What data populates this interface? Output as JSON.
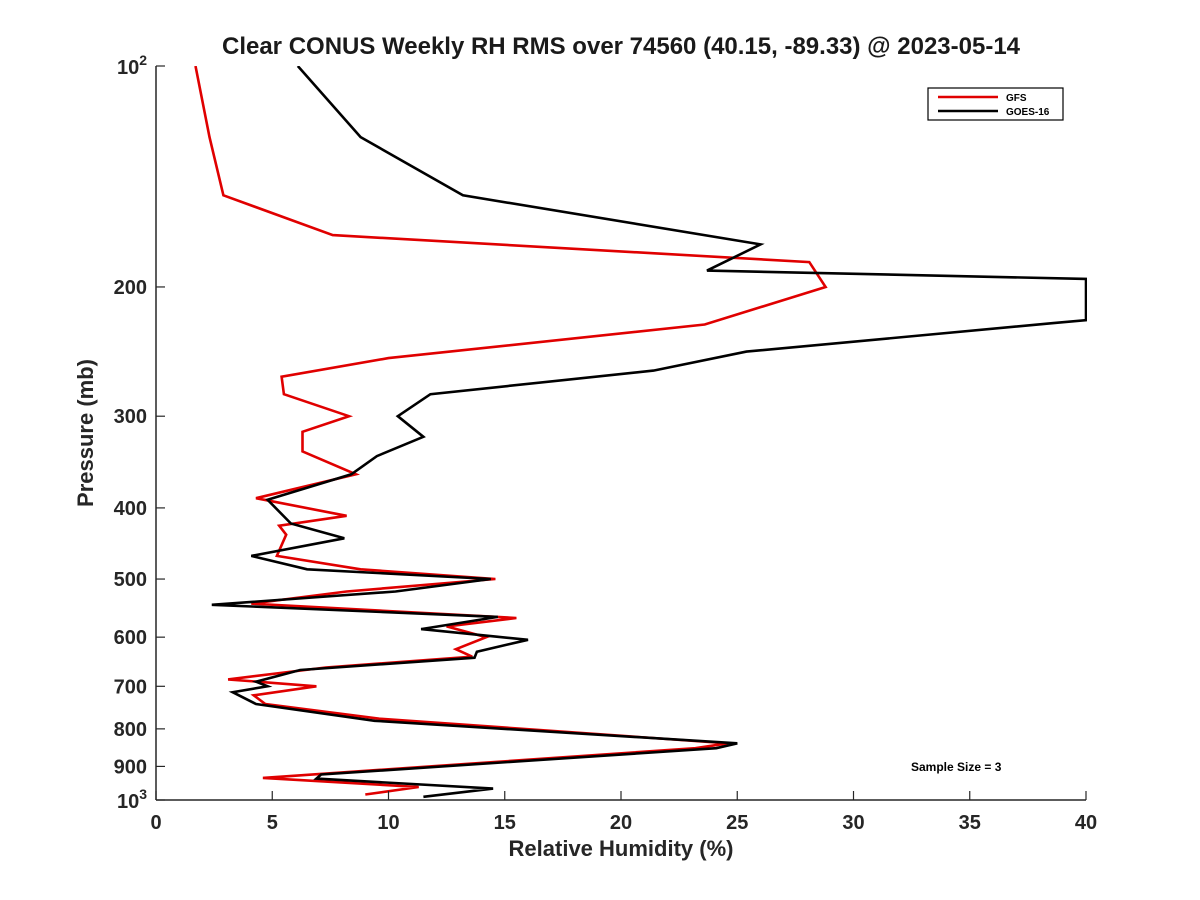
{
  "chart_data": {
    "type": "line",
    "title": "Clear CONUS Weekly RH RMS over 74560 (40.15, -89.33) @ 2023-05-14",
    "xlabel": "Relative Humidity (%)",
    "ylabel": "Pressure (mb)",
    "xlim": [
      0,
      40
    ],
    "ylim": [
      100,
      1000
    ],
    "y_scale": "log",
    "y_reversed": true,
    "x_ticks": [
      0,
      5,
      10,
      15,
      20,
      25,
      30,
      35,
      40
    ],
    "x_tick_labels": [
      "0",
      "5",
      "10",
      "15",
      "20",
      "25",
      "30",
      "35",
      "40"
    ],
    "y_ticks": [
      200,
      300,
      400,
      500,
      600,
      700,
      800,
      900
    ],
    "y_tick_labels": [
      "200",
      "300",
      "400",
      "500",
      "600",
      "700",
      "800",
      "900"
    ],
    "y_top_label": {
      "base": "10",
      "exp": "2"
    },
    "y_bottom_label": {
      "base": "10",
      "exp": "3"
    },
    "grid": false,
    "legend_position": "top-right",
    "annotation": "Sample Size = 3",
    "series": [
      {
        "name": "GFS",
        "color": "#e00000",
        "points": [
          [
            1.7,
            100
          ],
          [
            2.3,
            125
          ],
          [
            2.9,
            150
          ],
          [
            7.6,
            170
          ],
          [
            28.1,
            185
          ],
          [
            28.8,
            200
          ],
          [
            23.6,
            225
          ],
          [
            10.0,
            250
          ],
          [
            5.4,
            265
          ],
          [
            5.5,
            280
          ],
          [
            8.3,
            300
          ],
          [
            6.3,
            315
          ],
          [
            6.3,
            335
          ],
          [
            8.6,
            360
          ],
          [
            4.3,
            388
          ],
          [
            8.2,
            410
          ],
          [
            5.3,
            423
          ],
          [
            5.6,
            435
          ],
          [
            5.2,
            465
          ],
          [
            8.8,
            485
          ],
          [
            14.6,
            500
          ],
          [
            8.2,
            520
          ],
          [
            4.1,
            540
          ],
          [
            15.5,
            565
          ],
          [
            12.5,
            580
          ],
          [
            14.2,
            600
          ],
          [
            12.9,
            623
          ],
          [
            13.6,
            638
          ],
          [
            7.3,
            660
          ],
          [
            3.1,
            685
          ],
          [
            6.9,
            700
          ],
          [
            4.2,
            720
          ],
          [
            4.7,
            740
          ],
          [
            9.6,
            775
          ],
          [
            24.6,
            837
          ],
          [
            23.2,
            850
          ],
          [
            4.6,
            933
          ],
          [
            11.3,
            960
          ],
          [
            9.0,
            983
          ]
        ]
      },
      {
        "name": "GOES-16",
        "color": "#000000",
        "points": [
          [
            6.1,
            100
          ],
          [
            8.8,
            125
          ],
          [
            13.2,
            150
          ],
          [
            26.0,
            175
          ],
          [
            23.7,
            190
          ],
          [
            40.0,
            195
          ],
          [
            40.0,
            222
          ],
          [
            38.6,
            224
          ],
          [
            25.4,
            245
          ],
          [
            21.4,
            260
          ],
          [
            11.8,
            280
          ],
          [
            10.4,
            300
          ],
          [
            11.5,
            320
          ],
          [
            9.5,
            340
          ],
          [
            8.4,
            360
          ],
          [
            4.8,
            390
          ],
          [
            5.8,
            420
          ],
          [
            8.1,
            440
          ],
          [
            4.1,
            465
          ],
          [
            6.5,
            485
          ],
          [
            14.4,
            500
          ],
          [
            10.3,
            520
          ],
          [
            2.4,
            542
          ],
          [
            14.7,
            563
          ],
          [
            11.4,
            585
          ],
          [
            16.0,
            605
          ],
          [
            13.8,
            628
          ],
          [
            13.7,
            640
          ],
          [
            6.2,
            665
          ],
          [
            4.3,
            690
          ],
          [
            4.8,
            700
          ],
          [
            3.3,
            713
          ],
          [
            4.3,
            740
          ],
          [
            9.4,
            780
          ],
          [
            25.0,
            837
          ],
          [
            24.1,
            850
          ],
          [
            7.1,
            923
          ],
          [
            6.9,
            935
          ],
          [
            14.5,
            965
          ],
          [
            11.5,
            990
          ]
        ]
      }
    ]
  }
}
